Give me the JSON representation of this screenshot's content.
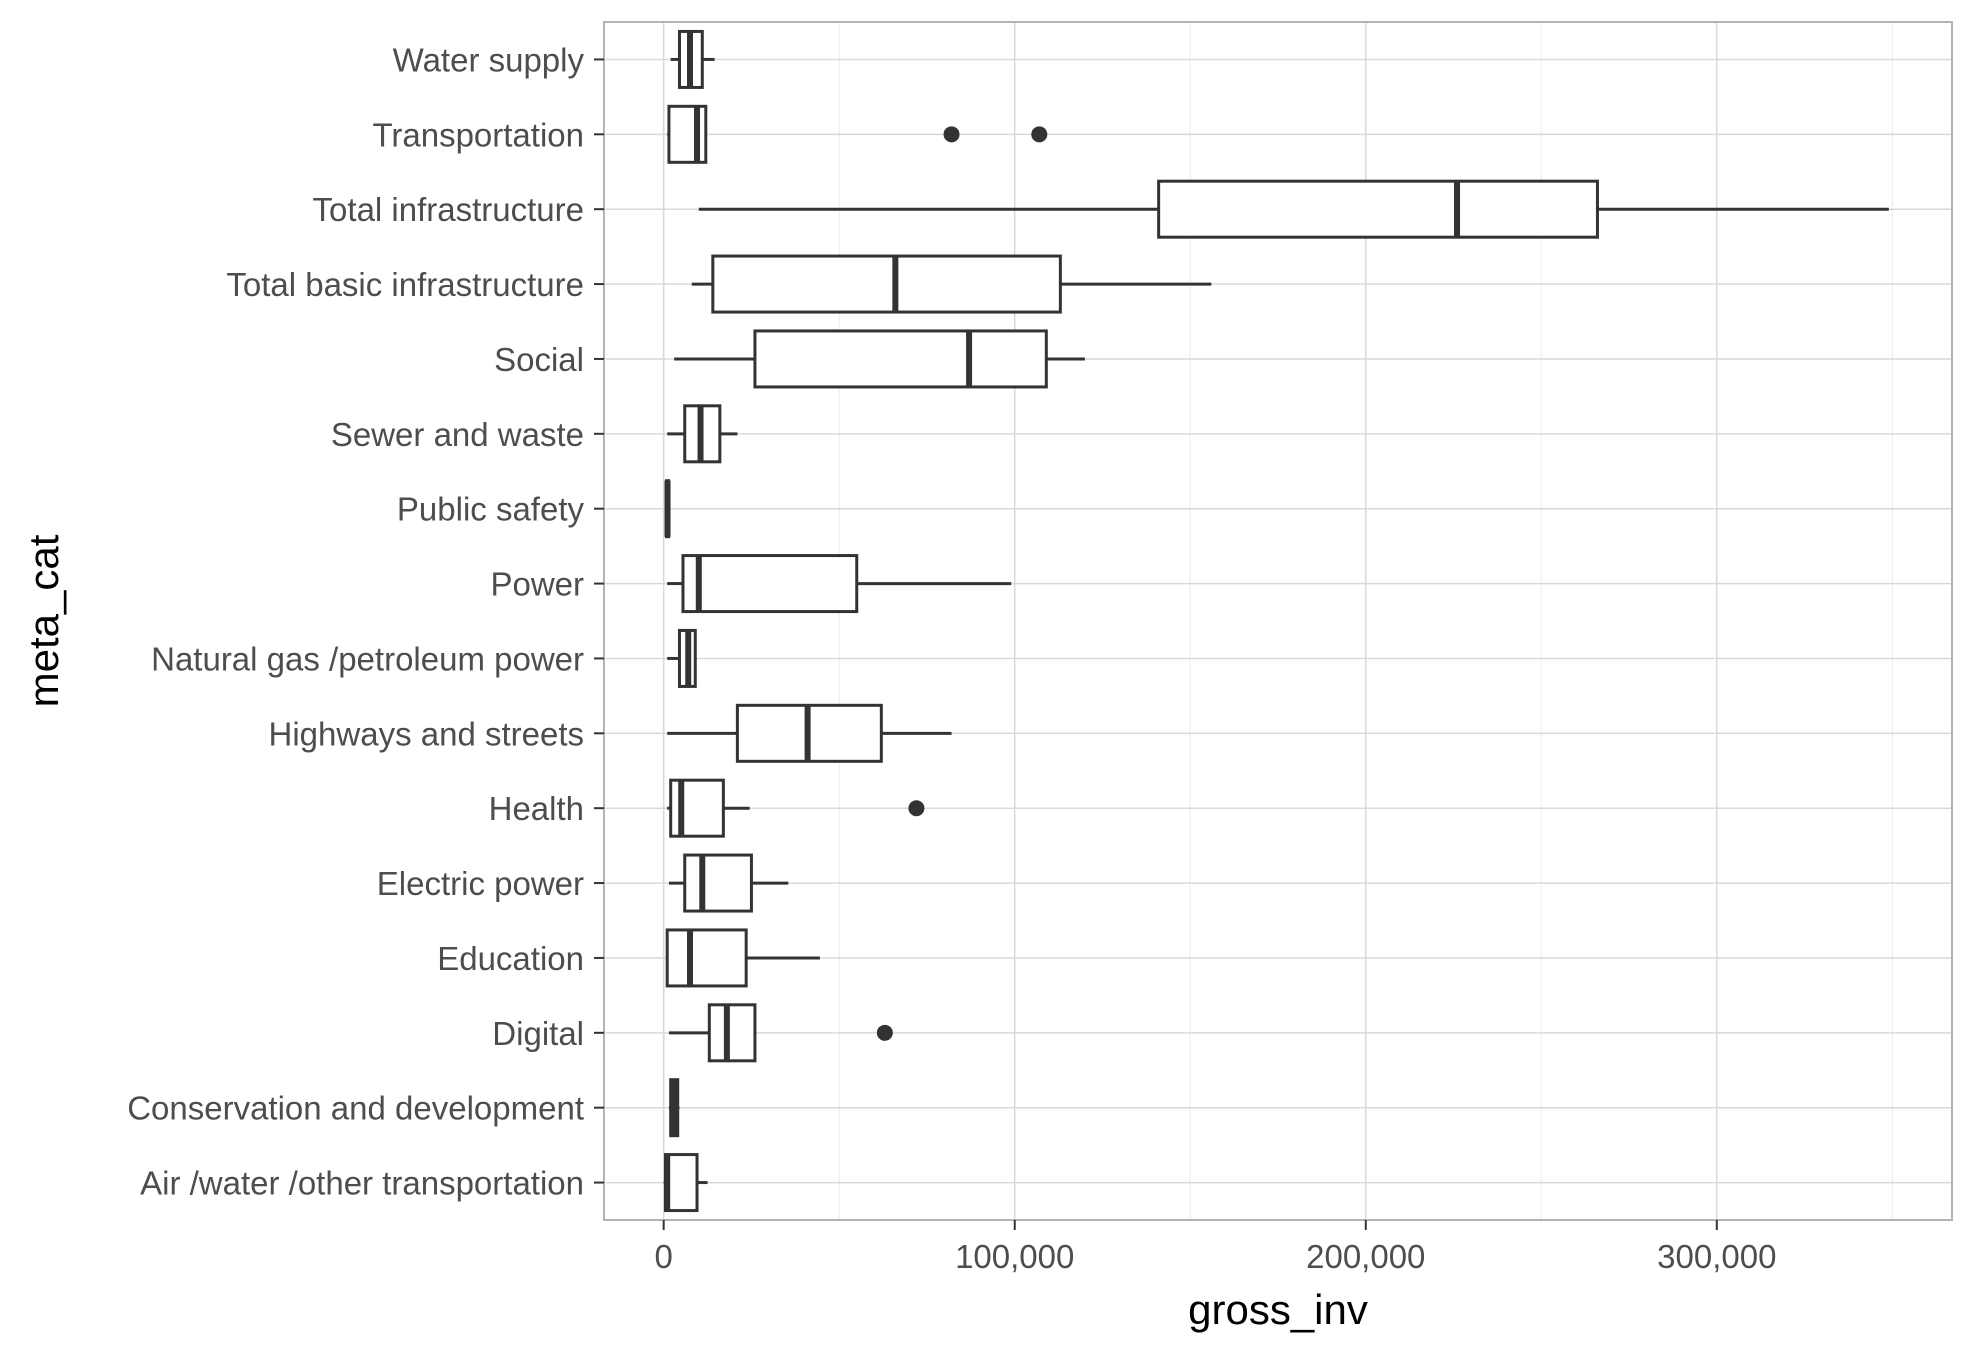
{
  "colors": {
    "background": "#ffffff",
    "panel_border": "#b3b3b3",
    "grid_major": "#d9d9d9",
    "grid_minor": "#ebebeb",
    "box_stroke": "#333333",
    "box_fill": "#ffffff",
    "tick_text": "#4d4d4d",
    "title_text": "#000000"
  },
  "chart_data": {
    "type": "boxplot",
    "orientation": "horizontal",
    "xlabel": "gross_inv",
    "ylabel": "meta_cat",
    "xlim": [
      -17000,
      367000
    ],
    "x_ticks": [
      0,
      100000,
      200000,
      300000
    ],
    "x_tick_labels": [
      "0",
      "100,000",
      "200,000",
      "300,000"
    ],
    "grid": true,
    "legend": "none",
    "categories": [
      "Water supply",
      "Transportation",
      "Total infrastructure",
      "Total basic infrastructure",
      "Social",
      "Sewer and waste",
      "Public safety",
      "Power",
      "Natural gas /petroleum power",
      "Highways and streets",
      "Health",
      "Electric power",
      "Education",
      "Digital",
      "Conservation and development",
      "Air /water /other transportation"
    ],
    "boxes": [
      {
        "category": "Water supply",
        "min": 2000,
        "q1": 4500,
        "median": 7500,
        "q3": 11000,
        "max": 14500,
        "outliers": []
      },
      {
        "category": "Transportation",
        "min": 1000,
        "q1": 1500,
        "median": 9500,
        "q3": 12000,
        "max": 12000,
        "outliers": [
          82000,
          107000
        ]
      },
      {
        "category": "Total infrastructure",
        "min": 10000,
        "q1": 141000,
        "median": 226000,
        "q3": 266000,
        "max": 349000,
        "outliers": []
      },
      {
        "category": "Total basic infrastructure",
        "min": 8000,
        "q1": 14000,
        "median": 66000,
        "q3": 113000,
        "max": 156000,
        "outliers": []
      },
      {
        "category": "Social",
        "min": 3000,
        "q1": 26000,
        "median": 87000,
        "q3": 109000,
        "max": 120000,
        "outliers": []
      },
      {
        "category": "Sewer and waste",
        "min": 1000,
        "q1": 6000,
        "median": 10500,
        "q3": 16000,
        "max": 21000,
        "outliers": []
      },
      {
        "category": "Public safety",
        "min": 500,
        "q1": 800,
        "median": 1100,
        "q3": 1400,
        "max": 1600,
        "outliers": []
      },
      {
        "category": "Power",
        "min": 1000,
        "q1": 5500,
        "median": 10000,
        "q3": 55000,
        "max": 99000,
        "outliers": []
      },
      {
        "category": "Natural gas /petroleum power",
        "min": 1000,
        "q1": 4500,
        "median": 7000,
        "q3": 9000,
        "max": 9000,
        "outliers": []
      },
      {
        "category": "Highways and streets",
        "min": 1000,
        "q1": 21000,
        "median": 41000,
        "q3": 62000,
        "max": 82000,
        "outliers": []
      },
      {
        "category": "Health",
        "min": 1000,
        "q1": 2000,
        "median": 5000,
        "q3": 17000,
        "max": 24500,
        "outliers": [
          72000
        ]
      },
      {
        "category": "Electric power",
        "min": 1500,
        "q1": 6000,
        "median": 11000,
        "q3": 25000,
        "max": 35500,
        "outliers": []
      },
      {
        "category": "Education",
        "min": 1000,
        "q1": 1000,
        "median": 7500,
        "q3": 23500,
        "max": 44500,
        "outliers": []
      },
      {
        "category": "Digital",
        "min": 1500,
        "q1": 13000,
        "median": 18000,
        "q3": 26000,
        "max": 26000,
        "outliers": [
          63000
        ]
      },
      {
        "category": "Conservation and development",
        "min": 1500,
        "q1": 2000,
        "median": 3000,
        "q3": 4000,
        "max": 4500,
        "outliers": []
      },
      {
        "category": "Air /water /other transportation",
        "min": 0,
        "q1": 500,
        "median": 1000,
        "q3": 9500,
        "max": 12500,
        "outliers": []
      }
    ]
  }
}
